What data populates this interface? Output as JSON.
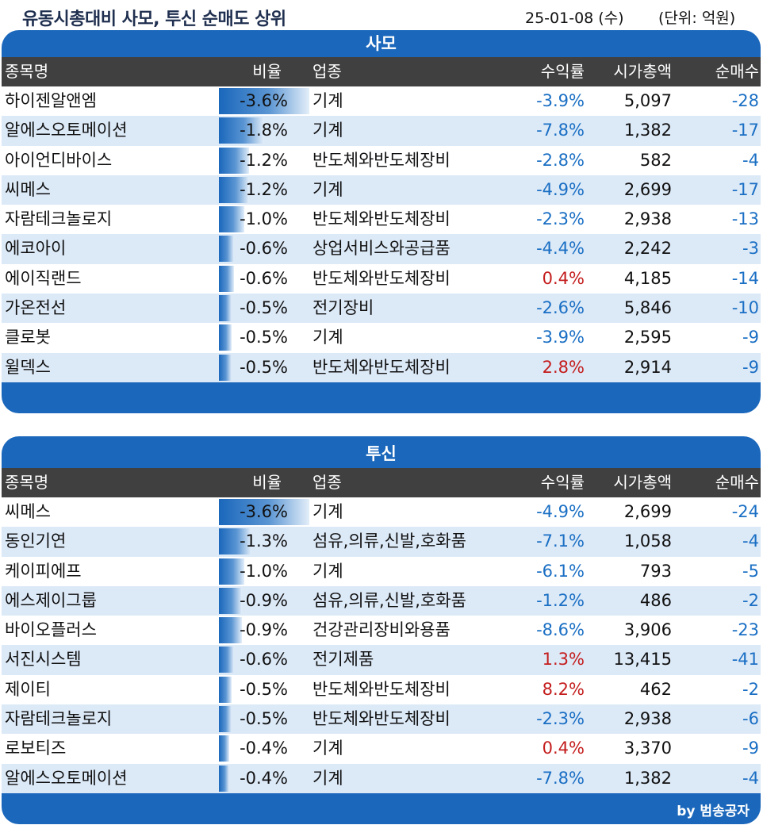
{
  "header": {
    "title": "유동시총대비 사모, 투신 순매도 상위",
    "date": "25-01-08 (수)",
    "unit": "(단위: 억원)"
  },
  "columns": {
    "name": "종목명",
    "ratio": "비율",
    "industry": "업종",
    "return": "수익률",
    "market_cap": "시가총액",
    "net": "순매수"
  },
  "colors": {
    "panel": "#1a67bb",
    "header_row": "#404040",
    "alt_row": "#dce9f7",
    "negative": "#1a6fc4",
    "positive": "#c41d1d"
  },
  "panels": [
    {
      "title": "사모",
      "rows": [
        {
          "name": "하이젠알앤엠",
          "ratio": "-3.6%",
          "ratio_value": -3.6,
          "industry": "기계",
          "return": "-3.9%",
          "return_sign": "neg",
          "market_cap": "5,097",
          "net": "-28"
        },
        {
          "name": "알에스오토메이션",
          "ratio": "-1.8%",
          "ratio_value": -1.8,
          "industry": "기계",
          "return": "-7.8%",
          "return_sign": "neg",
          "market_cap": "1,382",
          "net": "-17"
        },
        {
          "name": "아이언디바이스",
          "ratio": "-1.2%",
          "ratio_value": -1.2,
          "industry": "반도체와반도체장비",
          "return": "-2.8%",
          "return_sign": "neg",
          "market_cap": "582",
          "net": "-4"
        },
        {
          "name": "씨메스",
          "ratio": "-1.2%",
          "ratio_value": -1.2,
          "industry": "기계",
          "return": "-4.9%",
          "return_sign": "neg",
          "market_cap": "2,699",
          "net": "-17"
        },
        {
          "name": "자람테크놀로지",
          "ratio": "-1.0%",
          "ratio_value": -1.0,
          "industry": "반도체와반도체장비",
          "return": "-2.3%",
          "return_sign": "neg",
          "market_cap": "2,938",
          "net": "-13"
        },
        {
          "name": "에코아이",
          "ratio": "-0.6%",
          "ratio_value": -0.6,
          "industry": "상업서비스와공급품",
          "return": "-4.4%",
          "return_sign": "neg",
          "market_cap": "2,242",
          "net": "-3"
        },
        {
          "name": "에이직랜드",
          "ratio": "-0.6%",
          "ratio_value": -0.6,
          "industry": "반도체와반도체장비",
          "return": "0.4%",
          "return_sign": "pos",
          "market_cap": "4,185",
          "net": "-14"
        },
        {
          "name": "가온전선",
          "ratio": "-0.5%",
          "ratio_value": -0.5,
          "industry": "전기장비",
          "return": "-2.6%",
          "return_sign": "neg",
          "market_cap": "5,846",
          "net": "-10"
        },
        {
          "name": "클로봇",
          "ratio": "-0.5%",
          "ratio_value": -0.5,
          "industry": "기계",
          "return": "-3.9%",
          "return_sign": "neg",
          "market_cap": "2,595",
          "net": "-9"
        },
        {
          "name": "윌덱스",
          "ratio": "-0.5%",
          "ratio_value": -0.5,
          "industry": "반도체와반도체장비",
          "return": "2.8%",
          "return_sign": "pos",
          "market_cap": "2,914",
          "net": "-9"
        }
      ]
    },
    {
      "title": "투신",
      "rows": [
        {
          "name": "씨메스",
          "ratio": "-3.6%",
          "ratio_value": -3.6,
          "industry": "기계",
          "return": "-4.9%",
          "return_sign": "neg",
          "market_cap": "2,699",
          "net": "-24"
        },
        {
          "name": "동인기연",
          "ratio": "-1.3%",
          "ratio_value": -1.3,
          "industry": "섬유,의류,신발,호화품",
          "return": "-7.1%",
          "return_sign": "neg",
          "market_cap": "1,058",
          "net": "-4"
        },
        {
          "name": "케이피에프",
          "ratio": "-1.0%",
          "ratio_value": -1.0,
          "industry": "기계",
          "return": "-6.1%",
          "return_sign": "neg",
          "market_cap": "793",
          "net": "-5"
        },
        {
          "name": "에스제이그룹",
          "ratio": "-0.9%",
          "ratio_value": -0.9,
          "industry": "섬유,의류,신발,호화품",
          "return": "-1.2%",
          "return_sign": "neg",
          "market_cap": "486",
          "net": "-2"
        },
        {
          "name": "바이오플러스",
          "ratio": "-0.9%",
          "ratio_value": -0.9,
          "industry": "건강관리장비와용품",
          "return": "-8.6%",
          "return_sign": "neg",
          "market_cap": "3,906",
          "net": "-23"
        },
        {
          "name": "서진시스템",
          "ratio": "-0.6%",
          "ratio_value": -0.6,
          "industry": "전기제품",
          "return": "1.3%",
          "return_sign": "pos",
          "market_cap": "13,415",
          "net": "-41"
        },
        {
          "name": "제이티",
          "ratio": "-0.5%",
          "ratio_value": -0.5,
          "industry": "반도체와반도체장비",
          "return": "8.2%",
          "return_sign": "pos",
          "market_cap": "462",
          "net": "-2"
        },
        {
          "name": "자람테크놀로지",
          "ratio": "-0.5%",
          "ratio_value": -0.5,
          "industry": "반도체와반도체장비",
          "return": "-2.3%",
          "return_sign": "neg",
          "market_cap": "2,938",
          "net": "-6"
        },
        {
          "name": "로보티즈",
          "ratio": "-0.4%",
          "ratio_value": -0.4,
          "industry": "기계",
          "return": "0.4%",
          "return_sign": "pos",
          "market_cap": "3,370",
          "net": "-9"
        },
        {
          "name": "알에스오토메이션",
          "ratio": "-0.4%",
          "ratio_value": -0.4,
          "industry": "기계",
          "return": "-7.8%",
          "return_sign": "neg",
          "market_cap": "1,382",
          "net": "-4"
        }
      ]
    }
  ],
  "footer": {
    "credit": "by 범송공자"
  }
}
